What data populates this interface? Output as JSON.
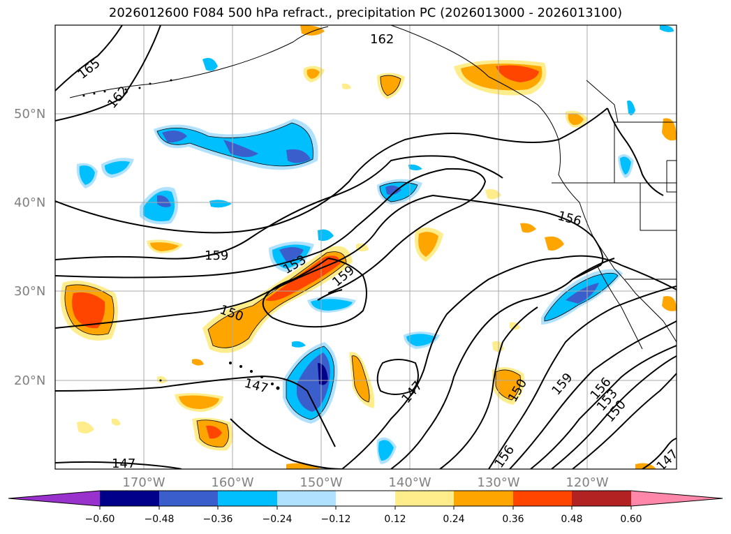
{
  "title": "2026012600 F084 500 hPa refract., precipitation PC (2026013000 - 2026013100)",
  "map": {
    "lat_labels": [
      "50°N",
      "40°N",
      "30°N",
      "20°N"
    ],
    "lon_labels": [
      "170°W",
      "160°W",
      "150°W",
      "140°W",
      "130°W",
      "120°W"
    ],
    "contour_labels": [
      "165",
      "162",
      "162",
      "159",
      "153",
      "159",
      "150",
      "147",
      "147",
      "147",
      "156",
      "150",
      "156",
      "159",
      "156",
      "153",
      "150",
      "147"
    ]
  },
  "colorbar": {
    "labels": [
      "−0.60",
      "−0.48",
      "−0.36",
      "−0.24",
      "−0.12",
      "0.12",
      "0.24",
      "0.36",
      "0.48",
      "0.60"
    ],
    "colors": [
      "#9932cc",
      "#00008b",
      "#3a5fcd",
      "#00bfff",
      "#b0e2ff",
      "#ffffff",
      "#ffec8b",
      "#ffa500",
      "#ff4500",
      "#b22222",
      "#ff88aa"
    ]
  }
}
